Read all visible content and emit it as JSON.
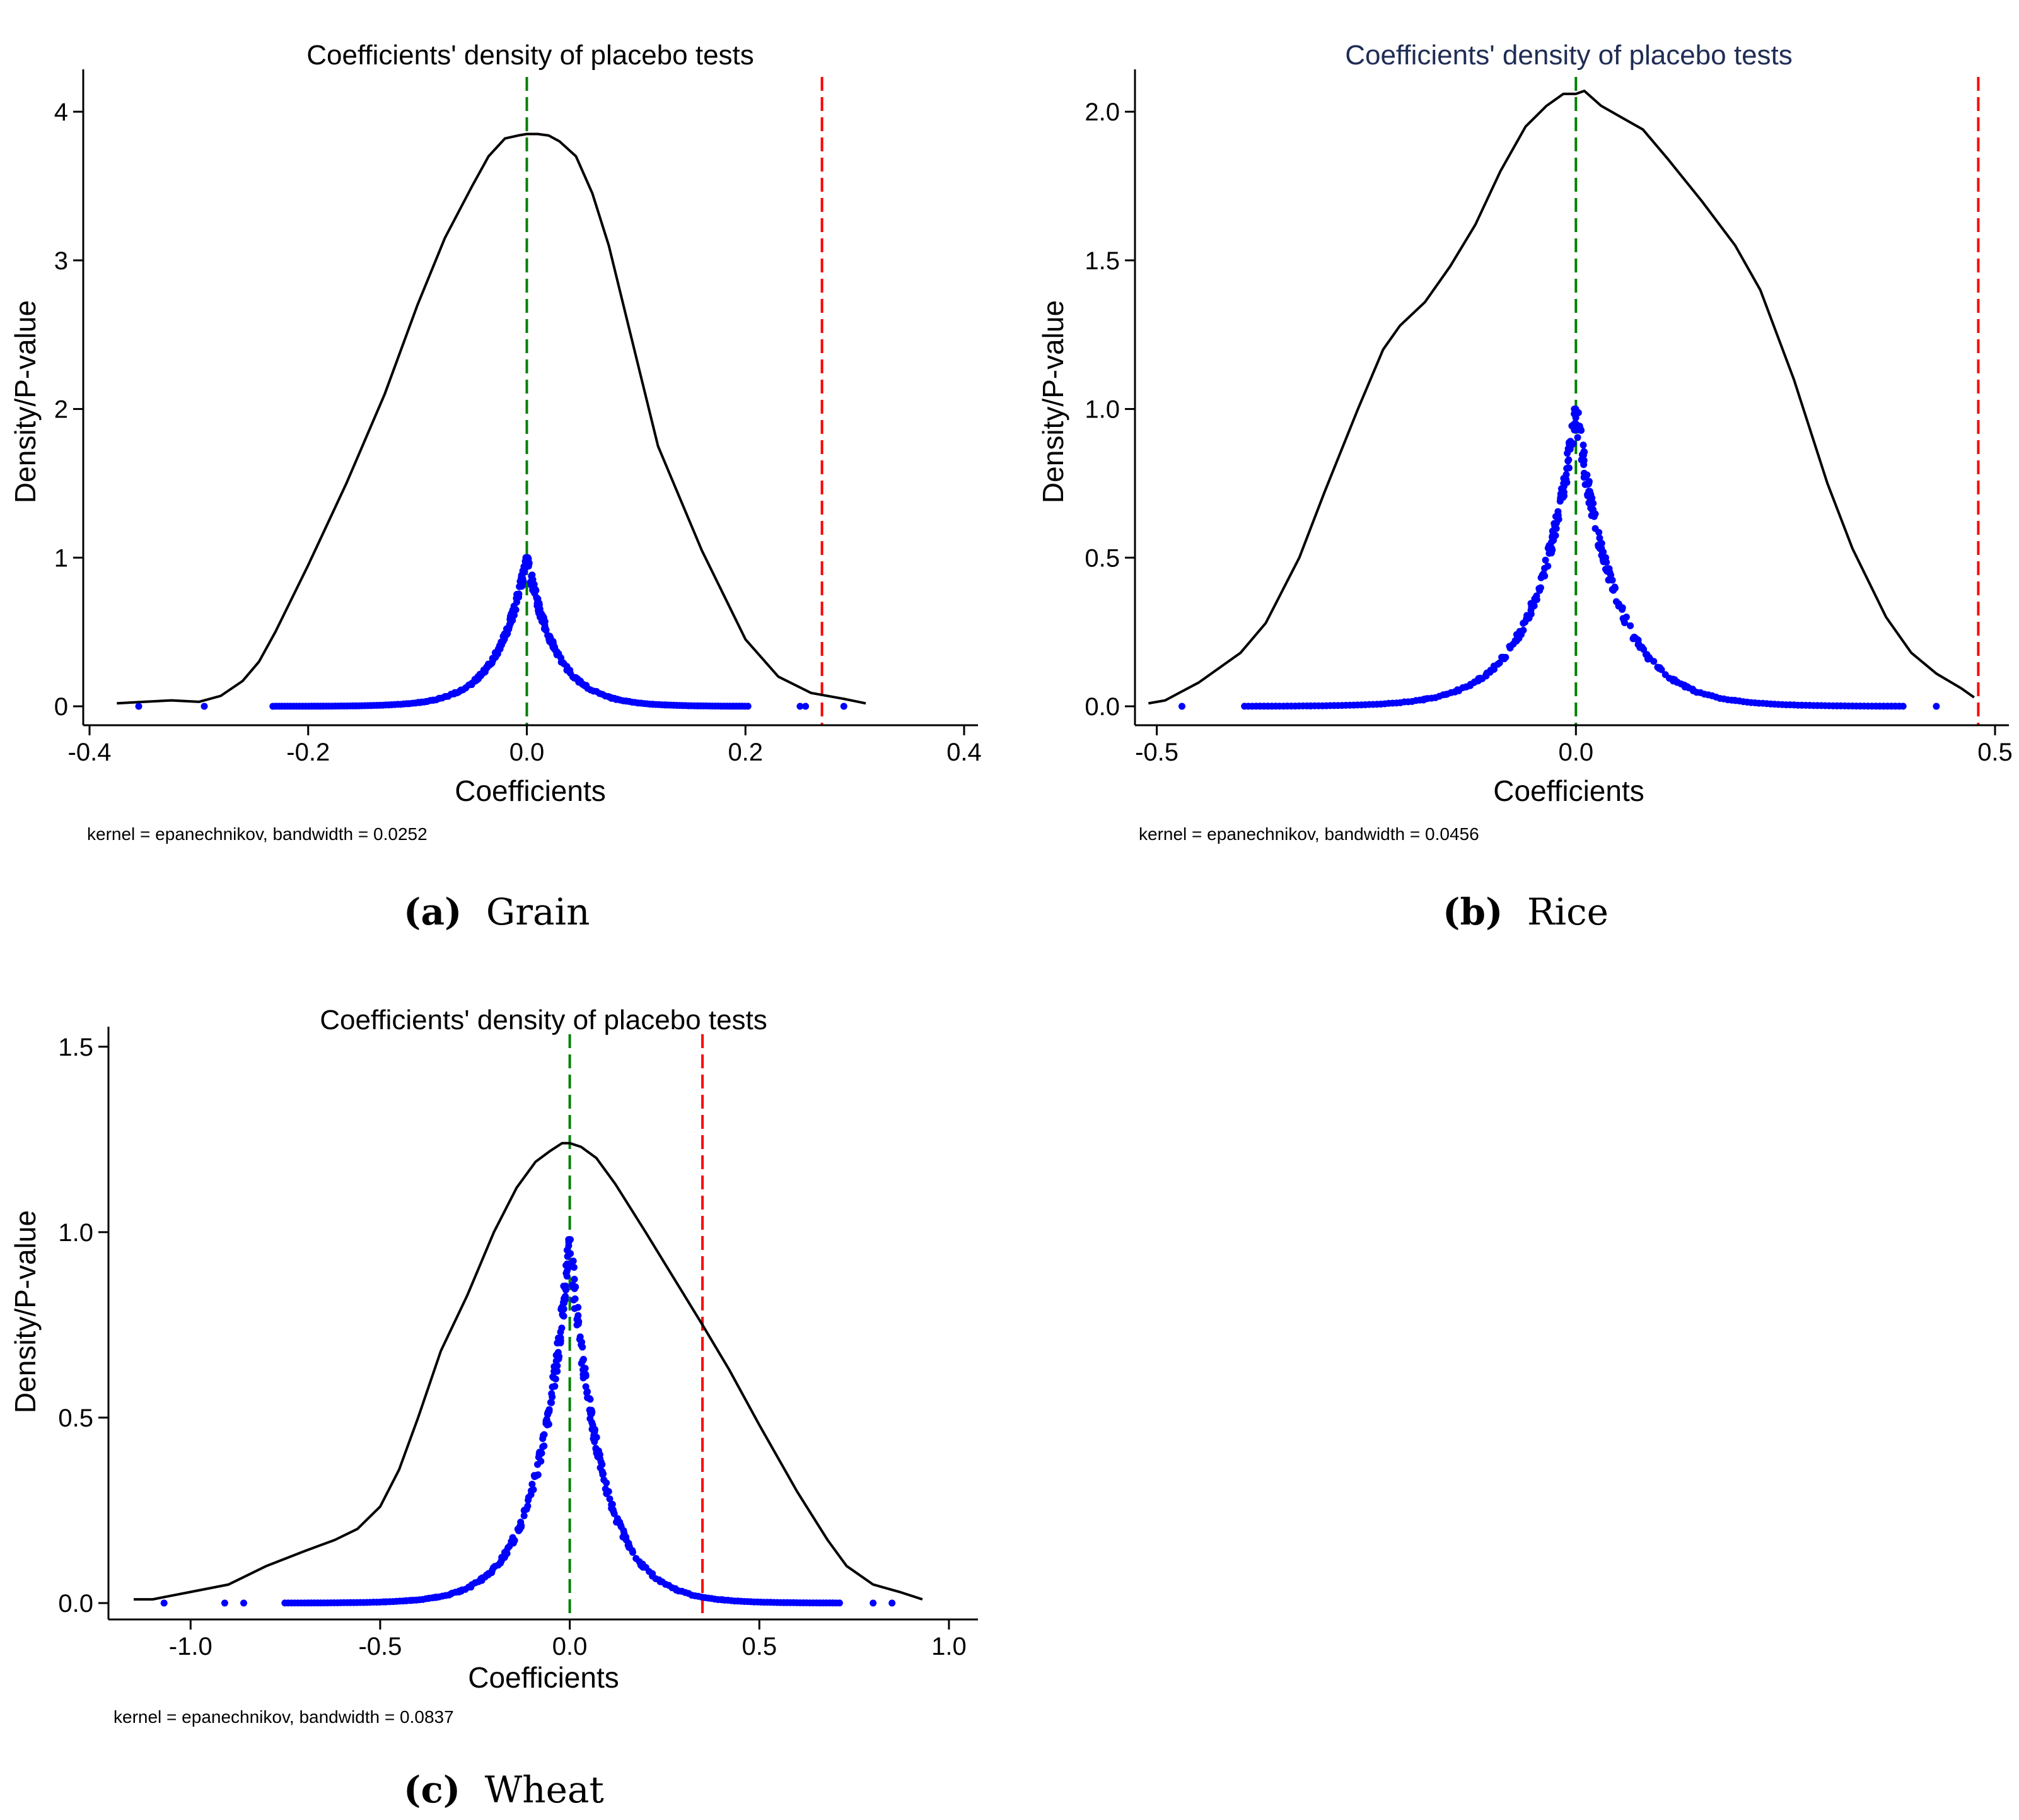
{
  "chart_data": [
    {
      "type": "line",
      "title": "Coefficients' density of placebo tests",
      "title_color": "#000000",
      "xlabel": "Coefficients",
      "ylabel": "Density/P-value",
      "note": "kernel = epanechnikov, bandwidth = 0.0252",
      "caption_letter": "(a)",
      "caption_text": "Grain",
      "xlim": [
        -0.4,
        0.4
      ],
      "ylim": [
        0,
        4.2
      ],
      "xticks": [
        -0.4,
        -0.2,
        0.0,
        0.2,
        0.4
      ],
      "xtick_labels": [
        "-0.4",
        "-0.2",
        "0.0",
        "0.2",
        "0.4"
      ],
      "yticks": [
        0,
        1,
        2,
        3,
        4
      ],
      "ytick_labels": [
        "0",
        "1",
        "2",
        "3",
        "4"
      ],
      "grid": false,
      "reference_lines": [
        {
          "x": 0.0,
          "color": "#008000",
          "style": "dashed"
        },
        {
          "x": 0.27,
          "color": "#ff0000",
          "style": "dashed"
        }
      ],
      "density": {
        "color": "#000000",
        "x": [
          -0.375,
          -0.35,
          -0.325,
          -0.3,
          -0.28,
          -0.26,
          -0.245,
          -0.23,
          -0.2,
          -0.165,
          -0.13,
          -0.1,
          -0.075,
          -0.05,
          -0.035,
          -0.02,
          -0.008,
          0.0,
          0.01,
          0.02,
          0.03,
          0.045,
          0.06,
          0.075,
          0.09,
          0.12,
          0.16,
          0.2,
          0.23,
          0.26,
          0.29,
          0.31
        ],
        "y": [
          0.02,
          0.03,
          0.04,
          0.03,
          0.07,
          0.17,
          0.3,
          0.5,
          0.95,
          1.5,
          2.1,
          2.7,
          3.15,
          3.5,
          3.7,
          3.82,
          3.84,
          3.85,
          3.85,
          3.84,
          3.8,
          3.7,
          3.45,
          3.1,
          2.65,
          1.75,
          1.05,
          0.45,
          0.2,
          0.09,
          0.05,
          0.02
        ]
      },
      "pvalue_points": {
        "color": "#0000ff",
        "center": 0.0,
        "peak": 1.0,
        "shape": "laplace",
        "scale": 0.027,
        "x_min": -0.235,
        "x_max": 0.205,
        "count": 360,
        "outliers": [
          -0.355,
          -0.295,
          0.25,
          0.255,
          0.29
        ]
      }
    },
    {
      "type": "line",
      "title": "Coefficients' density of placebo tests",
      "title_color": "#1f2d55",
      "xlabel": "Coefficients",
      "ylabel": "Density/P-value",
      "note": "kernel = epanechnikov, bandwidth = 0.0456",
      "caption_letter": "(b)",
      "caption_text": "Rice",
      "xlim": [
        -0.52,
        0.5
      ],
      "ylim": [
        0,
        2.1
      ],
      "xticks": [
        -0.5,
        0.0,
        0.5
      ],
      "xtick_labels": [
        "-0.5",
        "0.0",
        "0.5"
      ],
      "yticks": [
        0.0,
        0.5,
        1.0,
        1.5,
        2.0
      ],
      "ytick_labels": [
        "0.0",
        "0.5",
        "1.0",
        "1.5",
        "2.0"
      ],
      "grid": false,
      "reference_lines": [
        {
          "x": 0.0,
          "color": "#008000",
          "style": "dashed"
        },
        {
          "x": 0.48,
          "color": "#ff0000",
          "style": "dashed"
        }
      ],
      "density": {
        "color": "#000000",
        "x": [
          -0.51,
          -0.49,
          -0.47,
          -0.45,
          -0.42,
          -0.4,
          -0.37,
          -0.33,
          -0.3,
          -0.26,
          -0.23,
          -0.21,
          -0.18,
          -0.15,
          -0.12,
          -0.09,
          -0.06,
          -0.035,
          -0.015,
          0.0,
          0.01,
          0.03,
          0.055,
          0.08,
          0.11,
          0.15,
          0.19,
          0.22,
          0.26,
          0.3,
          0.33,
          0.37,
          0.4,
          0.43,
          0.46,
          0.475
        ],
        "y": [
          0.01,
          0.02,
          0.05,
          0.08,
          0.14,
          0.18,
          0.28,
          0.5,
          0.72,
          1.0,
          1.2,
          1.28,
          1.36,
          1.48,
          1.62,
          1.8,
          1.95,
          2.02,
          2.06,
          2.06,
          2.07,
          2.02,
          1.98,
          1.94,
          1.84,
          1.7,
          1.55,
          1.4,
          1.1,
          0.75,
          0.53,
          0.3,
          0.18,
          0.11,
          0.06,
          0.03
        ]
      },
      "pvalue_points": {
        "color": "#0000ff",
        "center": 0.0,
        "peak": 1.0,
        "shape": "laplace",
        "scale": 0.048,
        "x_min": -0.4,
        "x_max": 0.395,
        "count": 380,
        "outliers": [
          -0.47,
          0.43
        ]
      }
    },
    {
      "type": "line",
      "title": "Coefficients' density of placebo tests",
      "title_color": "#000000",
      "xlabel": "Coefficients",
      "ylabel": "Density/P-value",
      "note": "kernel = epanechnikov, bandwidth = 0.0837",
      "caption_letter": "(c)",
      "caption_text": "Wheat",
      "xlim": [
        -1.2,
        1.04
      ],
      "ylim": [
        0,
        1.52
      ],
      "xticks": [
        -1.0,
        -0.5,
        0.0,
        0.5,
        1.0
      ],
      "xtick_labels": [
        "-1.0",
        "-0.5",
        "0.0",
        "0.5",
        "1.0"
      ],
      "yticks": [
        0.0,
        0.5,
        1.0,
        1.5
      ],
      "yticks_labels_note": "",
      "ytick_labels": [
        "0.0",
        "0.5",
        "1.0",
        "1.5"
      ],
      "grid": false,
      "reference_lines": [
        {
          "x": 0.0,
          "color": "#008000",
          "style": "dashed"
        },
        {
          "x": 0.35,
          "color": "#ff0000",
          "style": "dashed"
        }
      ],
      "density": {
        "color": "#000000",
        "x": [
          -1.15,
          -1.1,
          -1.05,
          -1.0,
          -0.9,
          -0.8,
          -0.7,
          -0.62,
          -0.56,
          -0.5,
          -0.45,
          -0.4,
          -0.34,
          -0.27,
          -0.2,
          -0.14,
          -0.09,
          -0.05,
          -0.02,
          0.0,
          0.03,
          0.07,
          0.12,
          0.2,
          0.29,
          0.35,
          0.42,
          0.5,
          0.6,
          0.68,
          0.73,
          0.8,
          0.87,
          0.93
        ],
        "y": [
          0.01,
          0.01,
          0.02,
          0.03,
          0.05,
          0.1,
          0.14,
          0.17,
          0.2,
          0.26,
          0.36,
          0.5,
          0.68,
          0.83,
          1.0,
          1.12,
          1.19,
          1.22,
          1.24,
          1.24,
          1.23,
          1.2,
          1.13,
          1.0,
          0.85,
          0.75,
          0.63,
          0.48,
          0.3,
          0.17,
          0.1,
          0.05,
          0.03,
          0.01
        ]
      },
      "pvalue_points": {
        "color": "#0000ff",
        "center": 0.0,
        "peak": 0.98,
        "shape": "laplace",
        "scale": 0.085,
        "x_min": -0.76,
        "x_max": 0.72,
        "count": 380,
        "outliers": [
          -1.07,
          -0.91,
          -0.86,
          0.8,
          0.85
        ]
      }
    }
  ]
}
